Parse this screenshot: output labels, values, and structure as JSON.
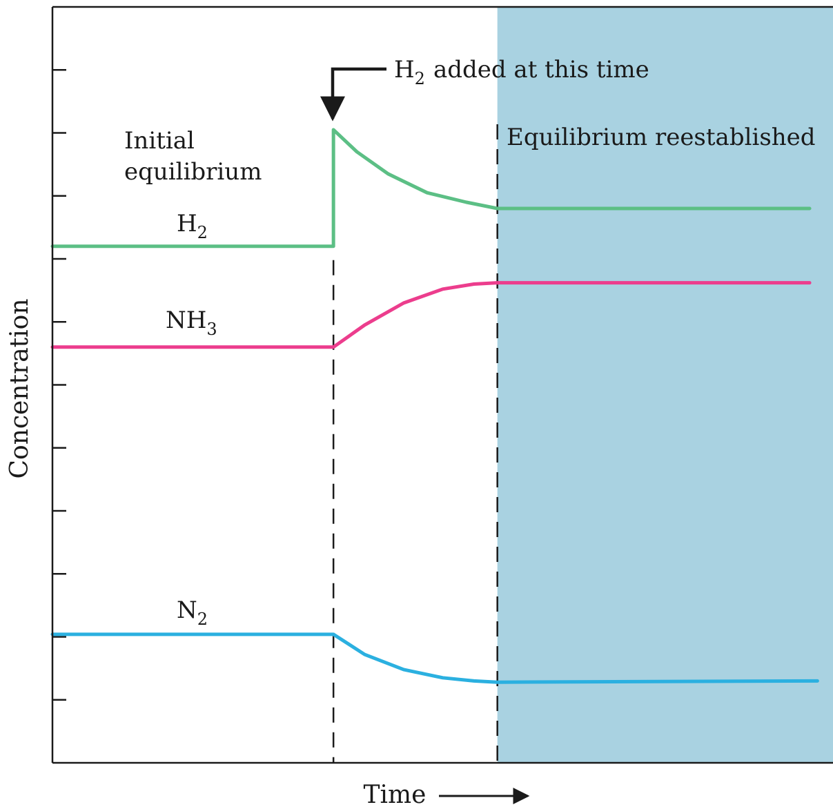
{
  "chart_data": {
    "type": "line",
    "xlabel": "Time",
    "ylabel": "Concentration",
    "xlim": [
      0,
      10
    ],
    "ylim": [
      0,
      12
    ],
    "y_tick_count": 11,
    "grid": false,
    "colors": {
      "h2": "#5cbf85",
      "nh3": "#ec3d8d",
      "n2": "#2bb0e0",
      "shade": "#a9d2e1"
    },
    "series": [
      {
        "key": "h2",
        "name": "H",
        "sub": "2",
        "x": [
          0,
          3.6,
          3.6,
          3.9,
          4.3,
          4.8,
          5.3,
          5.7,
          9.7
        ],
        "values": [
          8.2,
          8.2,
          10.05,
          9.7,
          9.35,
          9.05,
          8.9,
          8.8,
          8.8
        ]
      },
      {
        "key": "nh3",
        "name": "NH",
        "sub": "3",
        "x": [
          0,
          3.6,
          4.0,
          4.5,
          5.0,
          5.4,
          5.7,
          9.7
        ],
        "values": [
          6.6,
          6.6,
          6.95,
          7.3,
          7.52,
          7.6,
          7.62,
          7.62
        ]
      },
      {
        "key": "n2",
        "name": "N",
        "sub": "2",
        "x": [
          0,
          3.6,
          4.0,
          4.5,
          5.0,
          5.4,
          5.7,
          9.8
        ],
        "values": [
          2.04,
          2.04,
          1.72,
          1.48,
          1.35,
          1.3,
          1.28,
          1.3
        ]
      }
    ],
    "events": {
      "addition_time": 3.6,
      "equilibrium_time": 5.7
    },
    "annotations": {
      "added_main": "H",
      "added_sub": "2",
      "added_rest": "added at this time",
      "initial_line1": "Initial",
      "initial_line2": "equilibrium",
      "reestablished": "Equilibrium reestablished"
    }
  }
}
